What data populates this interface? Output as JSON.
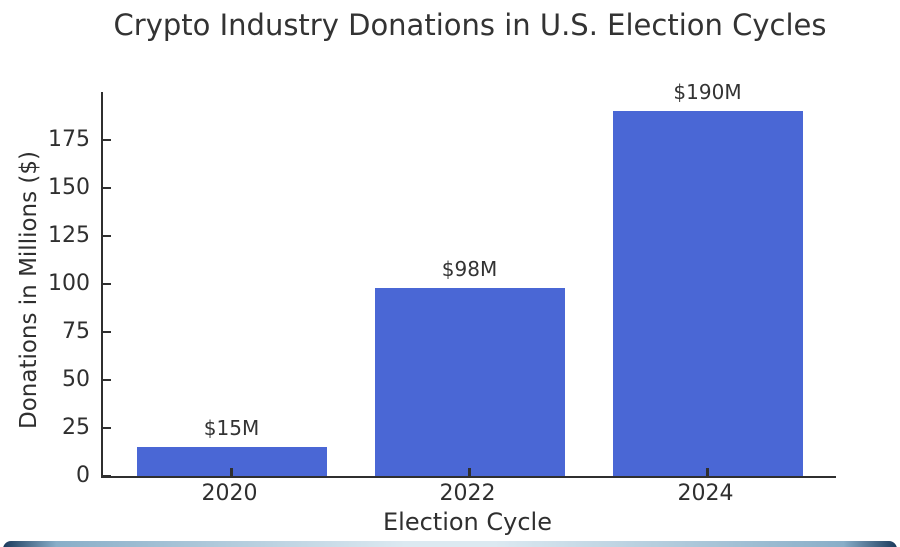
{
  "chart_data": {
    "type": "bar",
    "title": "Crypto Industry Donations in U.S. Election Cycles",
    "xlabel": "Election Cycle",
    "ylabel": "Donations in Millions ($)",
    "categories": [
      "2020",
      "2022",
      "2024"
    ],
    "values": [
      15,
      98,
      190
    ],
    "bar_labels": [
      "$15M",
      "$98M",
      "$190M"
    ],
    "yticks": [
      0,
      25,
      50,
      75,
      100,
      125,
      150,
      175
    ],
    "ylim": [
      0,
      200
    ],
    "grid": false,
    "legend": null,
    "bar_color": "#4a67d5",
    "axis_color": "#2f2f2f",
    "text_color": "#333333",
    "background_color": "#ffffff",
    "accent_strip_color": "#1b3a5c"
  }
}
